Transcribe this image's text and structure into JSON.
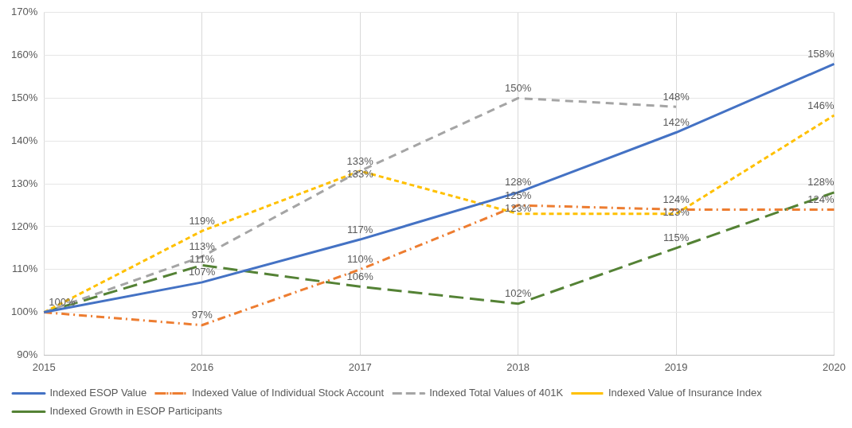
{
  "chart_data": {
    "type": "line",
    "categories": [
      "2015",
      "2016",
      "2017",
      "2018",
      "2019",
      "2020"
    ],
    "series": [
      {
        "name": "Indexed ESOP Value",
        "color": "#4472c4",
        "line_style": "solid",
        "values": [
          100,
          107,
          117,
          128,
          142,
          158
        ],
        "value_labels": [
          "100%",
          "107%",
          "117%",
          "128%",
          "142%",
          "158%"
        ]
      },
      {
        "name": "Indexed Value of Individual Stock Account",
        "color": "#ed7d31",
        "line_style": "dashed",
        "values": [
          100,
          97,
          110,
          125,
          124,
          124
        ],
        "value_labels": [
          null,
          "97%",
          "110%",
          "125%",
          "124%",
          "124%"
        ]
      },
      {
        "name": "Indexed Total Values of 401K",
        "color": "#a5a5a5",
        "line_style": "dashed",
        "values": [
          100,
          113,
          133,
          150,
          148,
          null
        ],
        "value_labels": [
          null,
          "113%",
          "133%",
          "150%",
          "148%",
          null
        ]
      },
      {
        "name": "Indexed Value of Insurance Index",
        "color": "#ffc000",
        "line_style": "dashed",
        "values": [
          100,
          119,
          133,
          123,
          123,
          146
        ],
        "value_labels": [
          null,
          "119%",
          "133%",
          "123%",
          "123%",
          "146%"
        ]
      },
      {
        "name": "Indexed Growth in ESOP Participants",
        "color": "#548235",
        "line_style": "dashed",
        "values": [
          100,
          111,
          106,
          102,
          115,
          128
        ],
        "value_labels": [
          null,
          "111%",
          "106%",
          "102%",
          "115%",
          "128%"
        ]
      }
    ],
    "ylim": [
      90,
      170
    ],
    "yticks": [
      {
        "value": 90,
        "label": "90%"
      },
      {
        "value": 100,
        "label": "100%"
      },
      {
        "value": 110,
        "label": "110%"
      },
      {
        "value": 120,
        "label": "120%"
      },
      {
        "value": 130,
        "label": "130%"
      },
      {
        "value": 140,
        "label": "140%"
      },
      {
        "value": 150,
        "label": "150%"
      },
      {
        "value": 160,
        "label": "160%"
      },
      {
        "value": 170,
        "label": "170%"
      }
    ],
    "grid": true,
    "legend": "bottom",
    "marker": "none"
  }
}
